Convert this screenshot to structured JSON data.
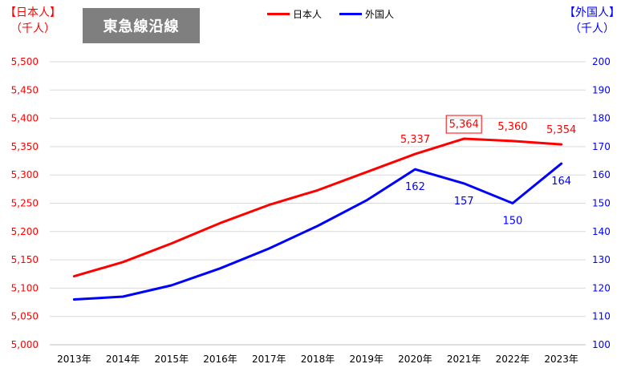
{
  "badge_text": "東急線沿線",
  "left_axis": {
    "line1": "【日本人】",
    "line2": "（千人）"
  },
  "right_axis": {
    "line1": "【外国人】",
    "line2": "（千人）"
  },
  "colors": {
    "japanese": "#ff0000",
    "foreign": "#0000ff",
    "grid": "#d9d9d9",
    "badge_bg": "#7f7f7f"
  },
  "chart_data": {
    "type": "line",
    "categories": [
      "2013年",
      "2014年",
      "2015年",
      "2016年",
      "2017年",
      "2018年",
      "2019年",
      "2020年",
      "2021年",
      "2022年",
      "2023年"
    ],
    "legend_placement": "top-center",
    "grid": true,
    "y_left": {
      "lim": [
        5000,
        5500
      ],
      "ticks": [
        5000,
        5050,
        5100,
        5150,
        5200,
        5250,
        5300,
        5350,
        5400,
        5450,
        5500
      ],
      "tick_labels": [
        "5,000",
        "5,050",
        "5,100",
        "5,150",
        "5,200",
        "5,250",
        "5,300",
        "5,350",
        "5,400",
        "5,450",
        "5,500"
      ]
    },
    "y_right": {
      "lim": [
        100,
        200
      ],
      "ticks": [
        100,
        110,
        120,
        130,
        140,
        150,
        160,
        170,
        180,
        190,
        200
      ],
      "tick_labels": [
        "100",
        "110",
        "120",
        "130",
        "140",
        "150",
        "160",
        "170",
        "180",
        "190",
        "200"
      ]
    },
    "series": [
      {
        "name": "日本人",
        "axis": "left",
        "values": [
          5121,
          5146,
          5179,
          5215,
          5247,
          5273,
          5305,
          5337,
          5364,
          5360,
          5354
        ],
        "data_labels": [
          null,
          null,
          null,
          null,
          null,
          null,
          null,
          "5,337",
          "5,364",
          "5,360",
          "5,354"
        ],
        "boxed_label": "5,364"
      },
      {
        "name": "外国人",
        "axis": "right",
        "values": [
          116,
          117,
          121,
          127,
          134,
          142,
          151,
          162,
          157,
          150,
          164
        ],
        "data_labels": [
          null,
          null,
          null,
          null,
          null,
          null,
          null,
          "162",
          "157",
          "150",
          "164"
        ]
      }
    ]
  }
}
